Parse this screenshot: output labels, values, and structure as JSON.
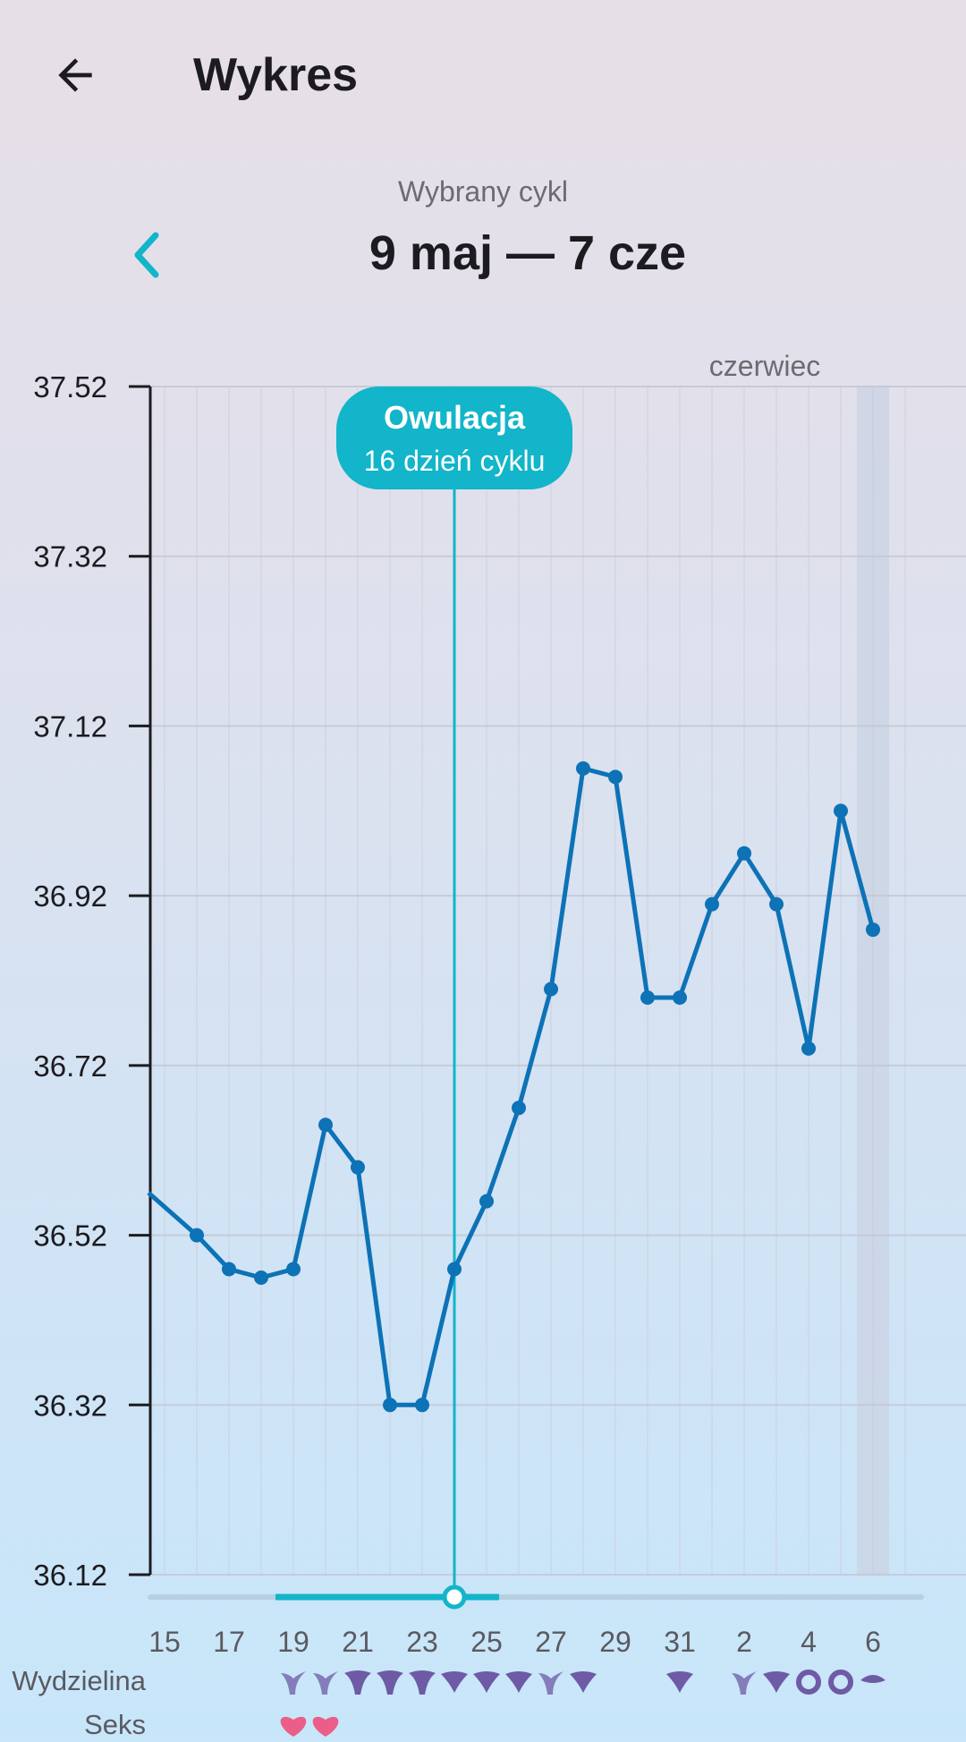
{
  "header": {
    "title": "Wykres",
    "back_icon": "arrow-left-icon"
  },
  "cycle": {
    "caption": "Wybrany cykl",
    "range": "9 maj — 7 cze",
    "prev_icon": "chevron-left-icon",
    "accent": "#12b5c9"
  },
  "chart_data": {
    "type": "line",
    "month_label": "czerwiec",
    "ylim": [
      36.12,
      37.52
    ],
    "yticks": [
      "37.52",
      "37.32",
      "37.12",
      "36.92",
      "36.72",
      "36.52",
      "36.32",
      "36.12"
    ],
    "xtick_labels": [
      "15",
      "17",
      "19",
      "21",
      "23",
      "25",
      "27",
      "29",
      "31",
      "2",
      "4",
      "6"
    ],
    "series": [
      {
        "color": "#0d72b6",
        "x": [
          14.5,
          16,
          17,
          18,
          19,
          20,
          21,
          22,
          23,
          24,
          25,
          26,
          27,
          28,
          29,
          30,
          31,
          32,
          33,
          34,
          35,
          36,
          37
        ],
        "values": [
          36.57,
          36.52,
          36.48,
          36.47,
          36.48,
          36.65,
          36.6,
          36.32,
          36.32,
          36.48,
          36.56,
          36.67,
          36.81,
          37.07,
          37.06,
          36.8,
          36.8,
          36.91,
          36.97,
          36.91,
          36.74,
          37.02,
          36.88
        ]
      }
    ],
    "ovulation": {
      "title": "Owulacja",
      "subtitle": "16 dzień cyklu",
      "x": 24
    },
    "fertile_window": [
      19,
      25.5
    ],
    "highlight_day": 37,
    "rows": {
      "discharge_label": "Wydzielina",
      "sex_label": "Seks",
      "discharge": [
        {
          "x": 19,
          "kind": "stretchy"
        },
        {
          "x": 20,
          "kind": "stretchy"
        },
        {
          "x": 21,
          "kind": "creamy"
        },
        {
          "x": 22,
          "kind": "creamy"
        },
        {
          "x": 23,
          "kind": "creamy"
        },
        {
          "x": 24,
          "kind": "sticky"
        },
        {
          "x": 25,
          "kind": "sticky"
        },
        {
          "x": 26,
          "kind": "sticky"
        },
        {
          "x": 27,
          "kind": "stretchy"
        },
        {
          "x": 28,
          "kind": "sticky"
        },
        {
          "x": 31,
          "kind": "sticky"
        },
        {
          "x": 33,
          "kind": "stretchy"
        },
        {
          "x": 34,
          "kind": "sticky"
        },
        {
          "x": 35,
          "kind": "ring"
        },
        {
          "x": 36,
          "kind": "ring"
        },
        {
          "x": 37,
          "kind": "dry"
        }
      ],
      "sex": [
        19,
        20
      ],
      "discharge_color": "#6e5aa5",
      "sex_color": "#ec5e8a"
    }
  }
}
